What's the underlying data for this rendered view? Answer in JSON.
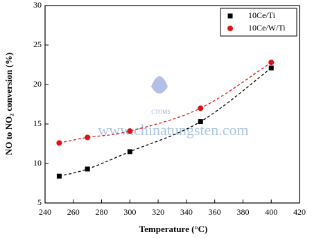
{
  "chart_data": {
    "type": "scatter",
    "xlabel": "Temperature (°C)",
    "ylabel": "NO to NO₂ conversion (%)",
    "xlim": [
      240,
      420
    ],
    "xticks": [
      240,
      260,
      280,
      300,
      320,
      340,
      360,
      380,
      400,
      420
    ],
    "ylim": [
      5,
      30
    ],
    "yticks": [
      5,
      10,
      15,
      20,
      25,
      30
    ],
    "legend": "upper right",
    "fit_lines": "dashed",
    "watermark": "www.chinatungsten.com",
    "logo_text": "CTOMS",
    "series": [
      {
        "name": "10Ce/Ti",
        "color": "#000000",
        "marker": "square",
        "x": [
          250,
          270,
          300,
          350,
          400
        ],
        "values": [
          8.4,
          9.3,
          11.5,
          15.3,
          22.1
        ]
      },
      {
        "name": "10Ce/W/Ti",
        "color": "#e01010",
        "marker": "circle",
        "x": [
          250,
          270,
          300,
          350,
          400
        ],
        "values": [
          12.6,
          13.3,
          14.1,
          17.0,
          22.8
        ]
      }
    ]
  }
}
